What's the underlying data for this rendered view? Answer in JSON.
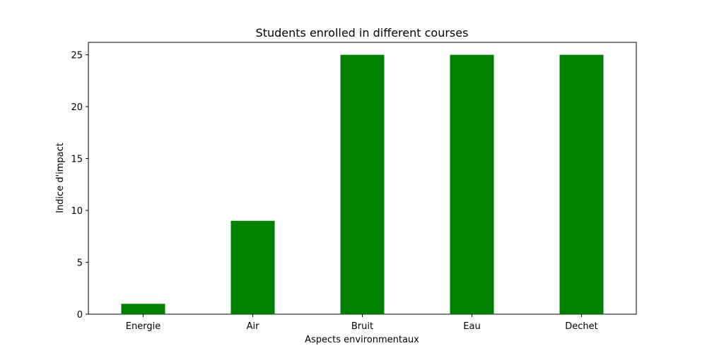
{
  "chart_data": {
    "type": "bar",
    "title": "Students enrolled in different courses",
    "xlabel": "Aspects environmentaux",
    "ylabel": "Indice d'impact",
    "categories": [
      "Energie",
      "Air",
      "Bruit",
      "Eau",
      "Dechet"
    ],
    "values": [
      1,
      9,
      25,
      25,
      25
    ],
    "ylim": [
      0,
      26.2
    ],
    "yticks": [
      0,
      5,
      10,
      15,
      20,
      25
    ],
    "bar_color": "#008000",
    "grid": false,
    "legend": "none"
  }
}
